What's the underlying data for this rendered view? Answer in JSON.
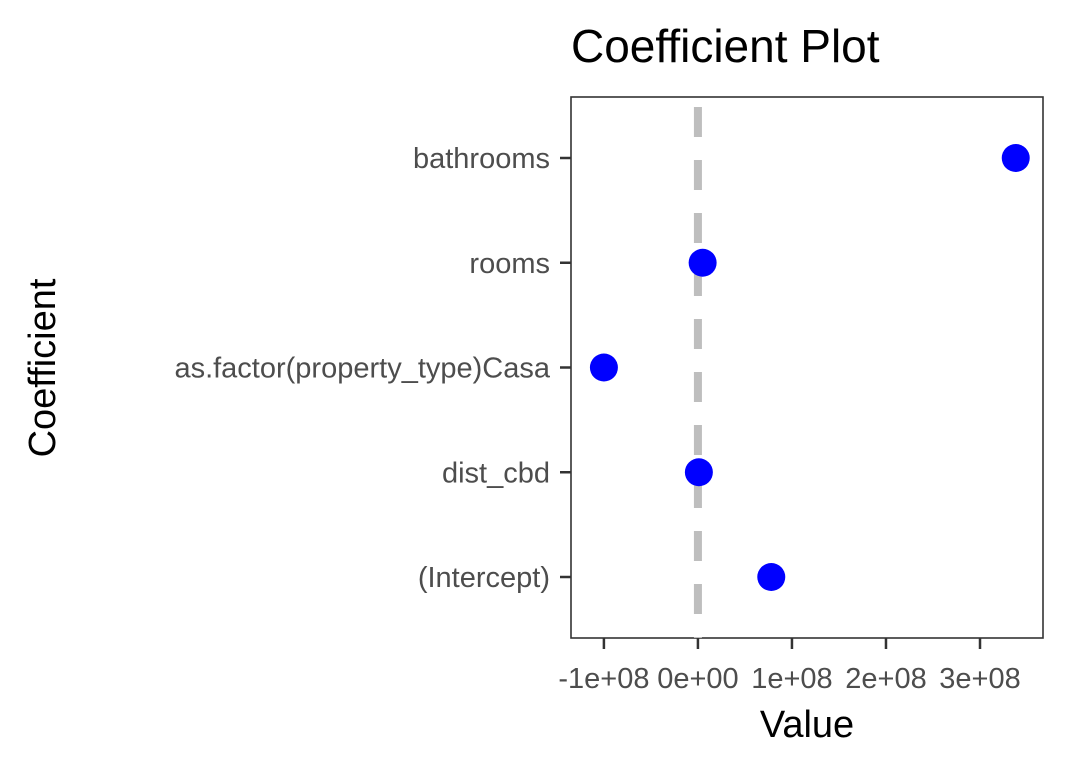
{
  "chart_data": {
    "type": "scatter",
    "title": "Coefficient Plot",
    "xlabel": "Value",
    "ylabel": "Coefficient",
    "categories": [
      "bathrooms",
      "rooms",
      "as.factor(property_type)Casa",
      "dist_cbd",
      "(Intercept)"
    ],
    "x_ticks": [
      {
        "value": -100000000,
        "label": "-1e+08"
      },
      {
        "value": 0,
        "label": "0e+00"
      },
      {
        "value": 100000000,
        "label": "1e+08"
      },
      {
        "value": 200000000,
        "label": "2e+08"
      },
      {
        "value": 300000000,
        "label": "3e+08"
      }
    ],
    "xlim": [
      -135000000,
      367000000
    ],
    "series": [
      {
        "values": [
          {
            "coefficient": "bathrooms",
            "value": 338000000
          },
          {
            "coefficient": "rooms",
            "value": 5000000
          },
          {
            "coefficient": "as.factor(property_type)Casa",
            "value": -100000000
          },
          {
            "coefficient": "dist_cbd",
            "value": 1000000
          },
          {
            "coefficient": "(Intercept)",
            "value": 78000000
          }
        ]
      }
    ],
    "reference_line": {
      "value": 0,
      "style": "dashed",
      "color": "#bebebe"
    },
    "point_color": "#0000ff",
    "grid": false,
    "legend": "none"
  }
}
